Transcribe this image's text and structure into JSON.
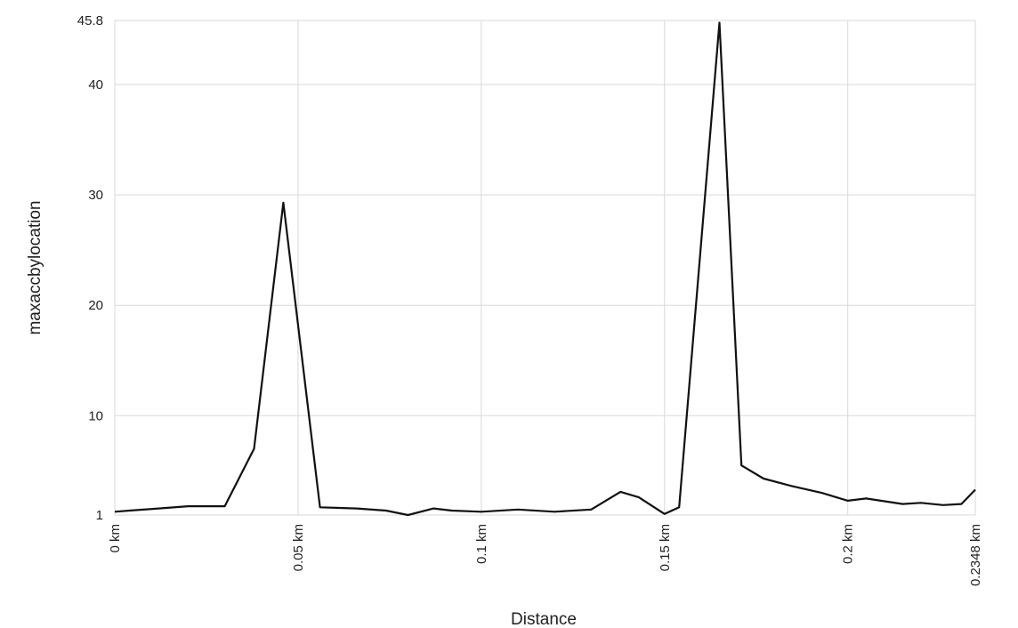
{
  "chart_data": {
    "type": "line",
    "title": "",
    "xlabel": "Distance",
    "ylabel": "maxaccbylocation",
    "xlim": [
      0,
      0.2348
    ],
    "ylim": [
      1,
      45.8
    ],
    "x_unit": "km",
    "y_ticks": [
      {
        "value": 1,
        "label": "1"
      },
      {
        "value": 10,
        "label": "10"
      },
      {
        "value": 20,
        "label": "20"
      },
      {
        "value": 30,
        "label": "30"
      },
      {
        "value": 40,
        "label": "40"
      },
      {
        "value": 45.8,
        "label": "45.8"
      }
    ],
    "x_ticks": [
      {
        "value": 0,
        "label": "0 km"
      },
      {
        "value": 0.05,
        "label": "0.05 km"
      },
      {
        "value": 0.1,
        "label": "0.1 km"
      },
      {
        "value": 0.15,
        "label": "0.15 km"
      },
      {
        "value": 0.2,
        "label": "0.2 km"
      },
      {
        "value": 0.2348,
        "label": "0.2348 km"
      }
    ],
    "grid": true,
    "legend": "none",
    "line_color": "#111111",
    "grid_color": "#d9d9d9",
    "series": [
      {
        "x": [
          0,
          0.004,
          0.012,
          0.02,
          0.03,
          0.038,
          0.046,
          0.056,
          0.066,
          0.074,
          0.08,
          0.087,
          0.092,
          0.1,
          0.11,
          0.12,
          0.13,
          0.138,
          0.143,
          0.15,
          0.154,
          0.165,
          0.171,
          0.177,
          0.185,
          0.193,
          0.2,
          0.205,
          0.215,
          0.22,
          0.226,
          0.231,
          0.2348
        ],
        "y": [
          1.3,
          1.4,
          1.6,
          1.8,
          1.8,
          7,
          29.3,
          1.7,
          1.6,
          1.4,
          1.0,
          1.6,
          1.4,
          1.3,
          1.5,
          1.3,
          1.5,
          3.1,
          2.6,
          1.1,
          1.7,
          45.6,
          5.5,
          4.3,
          3.6,
          3.0,
          2.3,
          2.5,
          2.0,
          2.1,
          1.9,
          2.0,
          3.3
        ]
      }
    ]
  }
}
